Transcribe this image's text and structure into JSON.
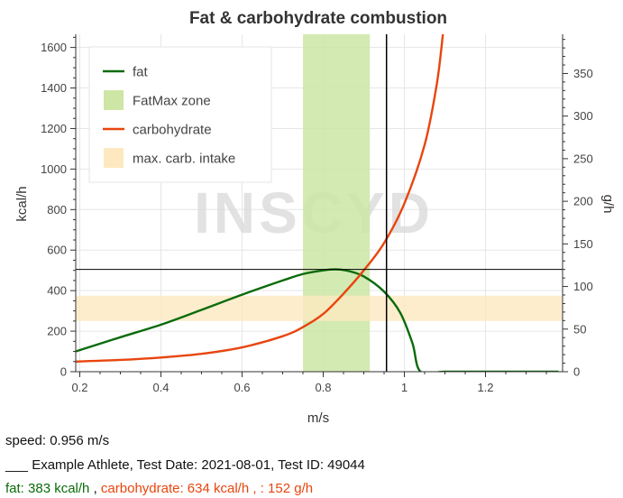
{
  "chart_data": {
    "type": "line",
    "title": "Fat & carbohydrate combustion",
    "xlabel": "m/s",
    "ylabel": "kcal/h",
    "y2label": "g/h",
    "xlim": [
      0.19,
      1.39
    ],
    "ylim": [
      0,
      1665
    ],
    "y2lim": [
      0,
      396
    ],
    "xticks": [
      0.2,
      0.4,
      0.6,
      0.8,
      1.0,
      1.2
    ],
    "xtick_labels": [
      "0.2",
      "0.4",
      "0.6",
      "0.8",
      "1",
      "1.2"
    ],
    "yticks": [
      0,
      200,
      400,
      600,
      800,
      1000,
      1200,
      1400,
      1600
    ],
    "y2ticks": [
      0,
      50,
      100,
      150,
      200,
      250,
      300,
      350
    ],
    "grid": true,
    "legend_position": "top-left",
    "watermark": "INSCYD",
    "series": [
      {
        "name": "fat",
        "color": "#0a6b0a",
        "x": [
          0.19,
          0.3,
          0.4,
          0.5,
          0.6,
          0.7,
          0.75,
          0.8,
          0.83,
          0.86,
          0.9,
          0.95,
          0.99,
          1.02,
          1.04,
          1.1,
          1.2,
          1.3,
          1.38
        ],
        "y": [
          100,
          170,
          232,
          305,
          380,
          450,
          482,
          500,
          505,
          498,
          470,
          395,
          290,
          140,
          0,
          0,
          0,
          0,
          0
        ]
      },
      {
        "name": "carbohydrate",
        "color": "#e8450e",
        "x": [
          0.19,
          0.3,
          0.4,
          0.5,
          0.6,
          0.7,
          0.75,
          0.8,
          0.85,
          0.9,
          0.95,
          1.0,
          1.05,
          1.08,
          1.095
        ],
        "y": [
          50,
          58,
          70,
          88,
          120,
          175,
          220,
          285,
          385,
          500,
          635,
          830,
          1120,
          1420,
          1665
        ]
      }
    ],
    "bands": [
      {
        "name": "FatMax zone",
        "axis": "x",
        "from": 0.75,
        "to": 0.915,
        "color": "#cde6a6"
      },
      {
        "name": "max. carb. intake",
        "axis": "y",
        "from": 250,
        "to": 375,
        "color": "#fde8c0"
      }
    ],
    "crosshair": {
      "x": 0.956,
      "y": 505
    }
  },
  "info": {
    "speed": "speed: 0.956 m/s",
    "athlete": "___ Example Athlete, Test Date: 2021-08-01, Test ID: 49044",
    "fat": "fat: 383 kcal/h",
    "separator": ",",
    "carb": "carbohydrate: 634 kcal/h , : 152 g/h"
  }
}
